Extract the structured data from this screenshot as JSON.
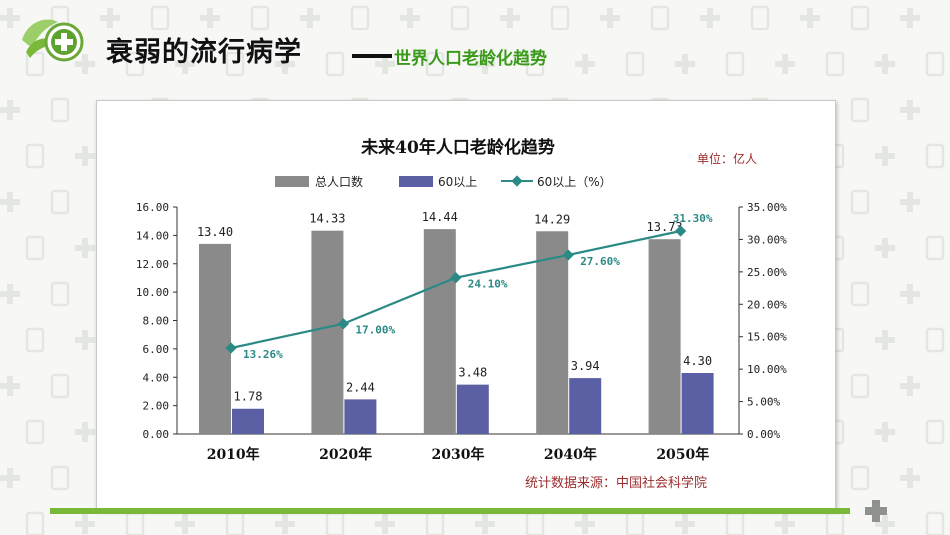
{
  "slide": {
    "title": "衰弱的流行病学",
    "subtitle": "世界人口老龄化趋势"
  },
  "colors": {
    "total_bar": "#8a8a8a",
    "over60_bar": "#5b5fa3",
    "line": "#2b8a86",
    "pct_label": "#2b8a86",
    "unit": "#9c2c2c",
    "accent_green": "#7ab83a"
  },
  "chart_data": {
    "type": "bar",
    "title": "未来40年人口老龄化趋势",
    "unit_label": "单位：亿人",
    "source_note": "统计数据来源：中国社会科学院",
    "categories": [
      "2010年",
      "2020年",
      "2030年",
      "2040年",
      "2050年"
    ],
    "series": [
      {
        "name": "总人口数",
        "type": "bar",
        "axis": "left",
        "values": [
          13.4,
          14.33,
          14.44,
          14.29,
          13.73
        ],
        "labels": [
          "13.40",
          "14.33",
          "14.44",
          "14.29",
          "13.73"
        ]
      },
      {
        "name": "60以上",
        "type": "bar",
        "axis": "left",
        "values": [
          1.78,
          2.44,
          3.48,
          3.94,
          4.3
        ],
        "labels": [
          "1.78",
          "2.44",
          "3.48",
          "3.94",
          "4.30"
        ]
      },
      {
        "name": "60以上（%）",
        "type": "line",
        "axis": "right",
        "values": [
          13.26,
          17.0,
          24.1,
          27.6,
          31.3
        ],
        "labels": [
          "13.26%",
          "17.00%",
          "24.10%",
          "27.60%",
          "31.30%"
        ]
      }
    ],
    "ylim": [
      0,
      16
    ],
    "y_ticks": [
      "0.00",
      "2.00",
      "4.00",
      "6.00",
      "8.00",
      "10.00",
      "12.00",
      "14.00",
      "16.00"
    ],
    "y2lim": [
      0,
      35
    ],
    "y2_ticks": [
      "0.00%",
      "5.00%",
      "10.00%",
      "15.00%",
      "20.00%",
      "25.00%",
      "30.00%",
      "35.00%"
    ],
    "legend_position": "top",
    "grid": false
  }
}
